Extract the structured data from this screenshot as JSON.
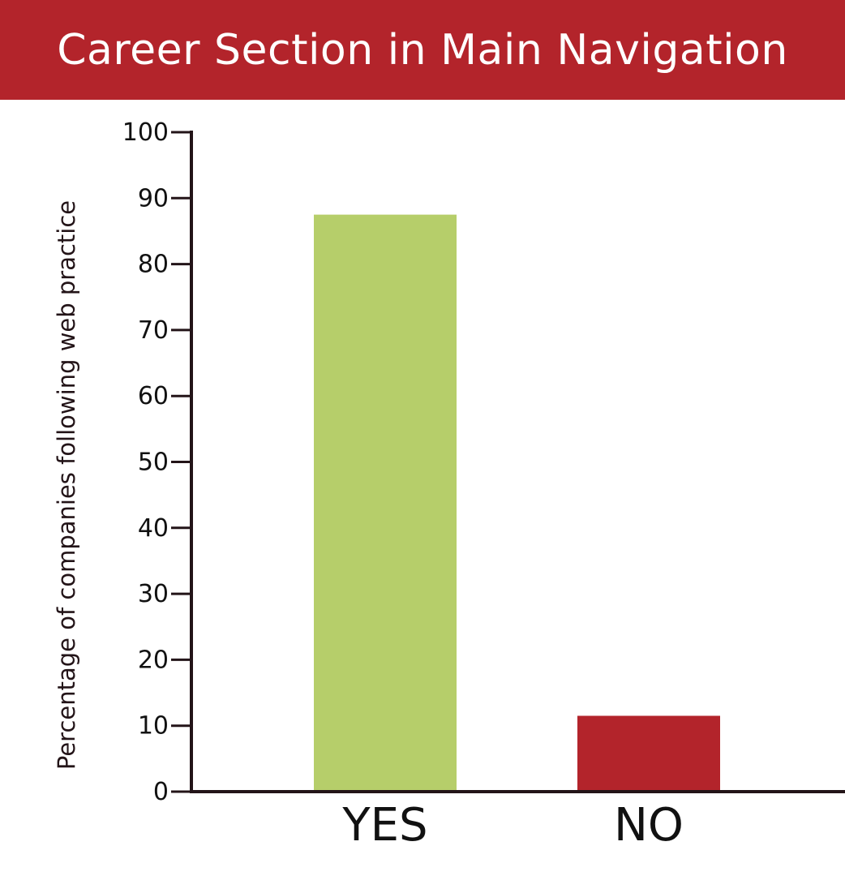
{
  "header": {
    "title": "Career Section in Main Navigation"
  },
  "colors": {
    "header_bg": "#b3242b",
    "yes_bar": "#b6ce6a",
    "no_bar": "#b3242b",
    "axis": "#231418"
  },
  "chart_data": {
    "type": "bar",
    "title": "Career Section in Main Navigation",
    "ylabel": "Percentage of companies following web practice",
    "xlabel": "",
    "categories": [
      "YES",
      "NO"
    ],
    "values": [
      87.5,
      11.5
    ],
    "bar_colors": [
      "#b6ce6a",
      "#b3242b"
    ],
    "ylim": [
      0,
      100
    ],
    "yticks": [
      0,
      10,
      20,
      30,
      40,
      50,
      60,
      70,
      80,
      90,
      100
    ],
    "ytick_labels": [
      "0",
      "10",
      "20",
      "30",
      "40",
      "50",
      "60",
      "70",
      "80",
      "90",
      "100"
    ],
    "grid": false,
    "legend": "none"
  }
}
